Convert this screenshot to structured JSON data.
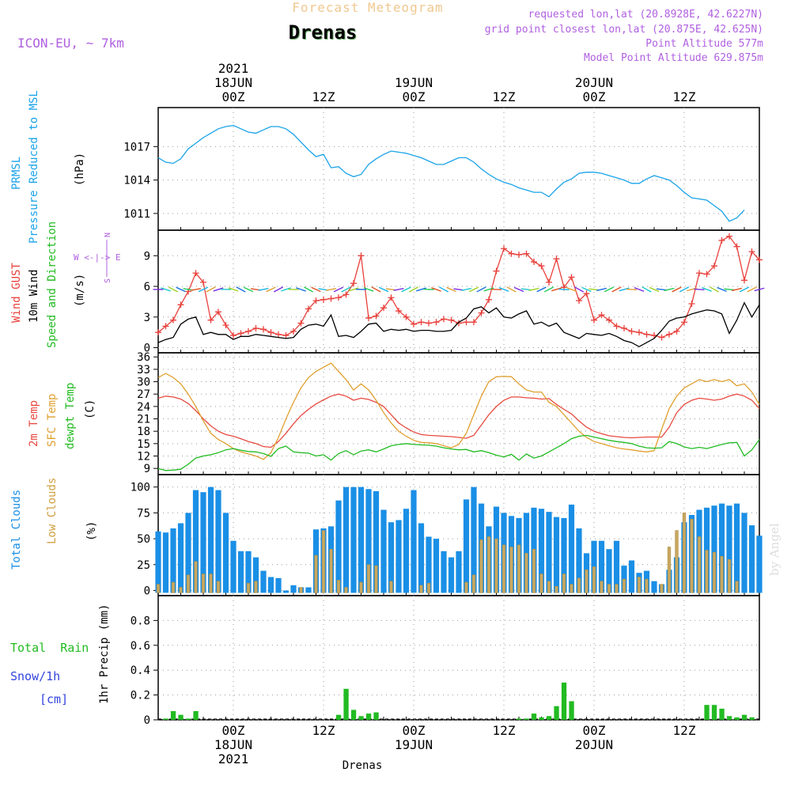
{
  "header": {
    "title_top": "Forecast Meteogram",
    "station": "Drenas",
    "model": "ICON-EU, ~ 7km",
    "req_point": "requested lon,lat (20.8928E, 42.6227N)",
    "grid_point": "grid point closest lon,lat (20.875E, 42.625N)",
    "altitude": "Point Altitude 577m",
    "model_altitude": "Model Point Altitude 629.875m",
    "footer_station": "Drenas",
    "watermark": "by Angel"
  },
  "time_axis": {
    "top_labels": [
      {
        "hour": 0,
        "lines": [
          "2021",
          "18JUN",
          "00Z"
        ]
      },
      {
        "hour": 12,
        "lines": [
          "12Z"
        ]
      },
      {
        "hour": 24,
        "lines": [
          "19JUN",
          "00Z"
        ]
      },
      {
        "hour": 36,
        "lines": [
          "12Z"
        ]
      },
      {
        "hour": 48,
        "lines": [
          "20JUN",
          "00Z"
        ]
      },
      {
        "hour": 60,
        "lines": [
          "12Z"
        ]
      }
    ],
    "bottom_labels": [
      {
        "hour": 0,
        "lines": [
          "00Z",
          "18JUN",
          "2021"
        ]
      },
      {
        "hour": 12,
        "lines": [
          "12Z"
        ]
      },
      {
        "hour": 24,
        "lines": [
          "00Z",
          "19JUN"
        ]
      },
      {
        "hour": 36,
        "lines": [
          "12Z"
        ]
      },
      {
        "hour": 48,
        "lines": [
          "00Z",
          "20JUN"
        ]
      },
      {
        "hour": 60,
        "lines": [
          "12Z"
        ]
      }
    ]
  },
  "panel_labels": {
    "pressure": {
      "l1": "PRMSL",
      "l2": "Pressure Reduced to MSL",
      "unit": "(hPa)"
    },
    "wind": {
      "gust": "Wind GUST",
      "wind10": "10m Wind",
      "dir": "Speed and Direction",
      "unit": "(m/s)",
      "compass_n": "N",
      "compass_s": "S",
      "compass_we": "W <-|-> E"
    },
    "temp": {
      "t2m": "2m Temp",
      "sfc": "SFC Temp",
      "dew": "dewpt Temp",
      "unit": "(C)"
    },
    "clouds": {
      "total": "Total Clouds",
      "low": "Low Clouds",
      "unit": "(%)"
    },
    "precip": {
      "rain": "Total  Rain",
      "snow": "Snow/1h",
      "snow_unit": "[cm]",
      "axis": "1hr Precip (mm)"
    }
  },
  "colors": {
    "pressure": "#1aa3e8",
    "gust": "#e8413c",
    "wind": "#000000",
    "t2m": "#e84a40",
    "sfc": "#e0a030",
    "dew": "#22bb22",
    "total_clouds": "#1a8fe6",
    "low_clouds": "#c8a860",
    "rain": "#22bb22",
    "snow": "#3344dd",
    "model_label": "#b060e0",
    "title_top": "#f0c890"
  },
  "chart_data": [
    {
      "type": "line",
      "name": "pressure",
      "x_start_hour": -10,
      "x_step_hours": 1,
      "ylim": [
        1009.5,
        1020.5
      ],
      "yticks": [
        1011,
        1014,
        1017
      ],
      "series": [
        {
          "name": "PRMSL",
          "values": [
            1016.0,
            1015.6,
            1015.5,
            1015.9,
            1016.8,
            1017.3,
            1017.8,
            1018.2,
            1018.6,
            1018.8,
            1018.9,
            1018.6,
            1018.3,
            1018.2,
            1018.5,
            1018.8,
            1018.8,
            1018.6,
            1018.1,
            1017.4,
            1016.7,
            1016.1,
            1016.3,
            1015.1,
            1015.2,
            1014.6,
            1014.3,
            1014.5,
            1015.4,
            1015.9,
            1016.3,
            1016.6,
            1016.5,
            1016.4,
            1016.2,
            1016.0,
            1015.7,
            1015.4,
            1015.4,
            1015.7,
            1016.0,
            1016.0,
            1015.6,
            1015.0,
            1014.5,
            1014.1,
            1013.8,
            1013.6,
            1013.3,
            1013.1,
            1012.9,
            1012.9,
            1012.5,
            1013.2,
            1013.8,
            1014.1,
            1014.6,
            1014.7,
            1014.7,
            1014.6,
            1014.4,
            1014.2,
            1014.0,
            1013.7,
            1013.7,
            1014.1,
            1014.4,
            1014.2,
            1014.0,
            1013.5,
            1012.9,
            1012.4,
            1012.3,
            1012.2,
            1011.7,
            1011.2,
            1010.3,
            1010.6,
            1011.3
          ]
        }
      ]
    },
    {
      "type": "line",
      "name": "wind",
      "x_start_hour": -10,
      "x_step_hours": 1,
      "ylim": [
        -0.5,
        11.5
      ],
      "yticks": [
        0,
        3,
        6,
        9
      ],
      "series": [
        {
          "name": "Wind GUST",
          "values": [
            1.5,
            2.1,
            2.7,
            4.2,
            5.5,
            7.3,
            6.4,
            2.7,
            3.5,
            2.2,
            1.2,
            1.4,
            1.6,
            1.9,
            1.8,
            1.5,
            1.3,
            1.2,
            1.6,
            2.4,
            3.8,
            4.6,
            4.7,
            4.8,
            4.9,
            5.2,
            6.3,
            9.0,
            2.9,
            3.1,
            3.9,
            4.9,
            3.6,
            3.0,
            2.3,
            2.5,
            2.4,
            2.5,
            2.8,
            2.7,
            2.4,
            2.5,
            2.5,
            3.4,
            4.7,
            7.5,
            9.7,
            9.2,
            9.1,
            9.2,
            8.4,
            8.0,
            6.4,
            8.7,
            5.9,
            6.9,
            4.6,
            5.3,
            2.7,
            3.2,
            2.7,
            2.1,
            1.9,
            1.6,
            1.5,
            1.3,
            1.2,
            1.0,
            1.3,
            1.6,
            2.5,
            4.3,
            7.3,
            7.2,
            8.0,
            10.5,
            10.9,
            9.9,
            6.6,
            9.4,
            8.6
          ]
        },
        {
          "name": "10m Wind",
          "values": [
            0.5,
            0.8,
            1.0,
            2.3,
            2.8,
            3.0,
            1.3,
            1.5,
            1.3,
            1.3,
            0.8,
            1.1,
            1.1,
            1.3,
            1.2,
            1.1,
            1.0,
            0.9,
            1.0,
            1.8,
            2.2,
            2.3,
            2.1,
            3.2,
            1.1,
            1.2,
            1.0,
            1.6,
            2.3,
            2.4,
            1.6,
            1.8,
            1.7,
            1.8,
            1.6,
            1.7,
            1.7,
            1.6,
            1.6,
            1.7,
            2.5,
            2.9,
            3.8,
            4.0,
            3.4,
            3.9,
            3.0,
            2.9,
            3.3,
            3.6,
            2.3,
            2.5,
            2.1,
            2.4,
            1.5,
            1.2,
            0.9,
            1.4,
            1.3,
            1.2,
            1.4,
            1.1,
            0.7,
            0.5,
            0.1,
            0.5,
            0.9,
            1.7,
            2.6,
            2.9,
            3.0,
            3.3,
            3.5,
            3.7,
            3.6,
            3.3,
            1.4,
            2.7,
            4.4,
            3.0,
            4.2
          ]
        }
      ]
    },
    {
      "type": "line",
      "name": "temperature",
      "x_start_hour": -10,
      "x_step_hours": 1,
      "ylim": [
        7.5,
        37
      ],
      "yticks": [
        9,
        12,
        15,
        18,
        21,
        24,
        27,
        30,
        33,
        36
      ],
      "series": [
        {
          "name": "2m Temp",
          "values": [
            26.0,
            26.5,
            26.3,
            25.8,
            24.7,
            23.0,
            21.0,
            19.3,
            18.0,
            17.2,
            16.8,
            16.2,
            15.5,
            15.0,
            14.3,
            14.1,
            15.5,
            17.5,
            19.8,
            21.8,
            23.3,
            24.6,
            25.6,
            26.5,
            27.0,
            26.5,
            25.5,
            26.0,
            25.7,
            25.0,
            24.0,
            22.0,
            20.0,
            18.8,
            17.8,
            17.2,
            17.0,
            16.9,
            16.8,
            16.7,
            16.5,
            16.3,
            17.0,
            19.5,
            22.0,
            24.0,
            25.5,
            26.3,
            26.3,
            26.1,
            26.0,
            25.8,
            25.9,
            24.5,
            23.3,
            22.2,
            20.5,
            19.0,
            18.0,
            17.4,
            16.9,
            16.7,
            16.5,
            16.4,
            16.5,
            16.6,
            16.6,
            16.6,
            19.0,
            22.5,
            24.5,
            25.5,
            26.0,
            25.8,
            25.5,
            25.8,
            26.5,
            27.0,
            26.5,
            25.5,
            23.5
          ]
        },
        {
          "name": "SFC Temp",
          "values": [
            31.0,
            32.0,
            31.0,
            29.5,
            27.0,
            24.0,
            20.5,
            17.5,
            16.0,
            15.0,
            13.8,
            13.0,
            12.5,
            12.0,
            11.2,
            12.8,
            16.5,
            21.0,
            25.0,
            28.5,
            31.0,
            32.5,
            33.5,
            34.5,
            32.5,
            30.5,
            28.0,
            29.5,
            28.0,
            25.5,
            22.5,
            20.0,
            18.0,
            16.8,
            15.8,
            15.3,
            15.2,
            15.0,
            14.5,
            14.0,
            14.8,
            17.5,
            22.0,
            26.5,
            30.0,
            31.2,
            31.3,
            31.2,
            29.5,
            28.0,
            27.5,
            27.5,
            25.0,
            24.0,
            22.0,
            20.0,
            18.0,
            16.5,
            15.5,
            15.0,
            14.5,
            14.0,
            13.7,
            13.5,
            13.2,
            13.0,
            13.3,
            18.5,
            23.5,
            26.5,
            28.5,
            29.5,
            30.5,
            30.0,
            30.5,
            30.0,
            30.5,
            29.0,
            29.5,
            27.5,
            24.5
          ]
        },
        {
          "name": "dewpt Temp",
          "values": [
            9.0,
            8.5,
            8.6,
            8.8,
            10.0,
            11.5,
            12.0,
            12.3,
            12.8,
            13.5,
            13.8,
            13.4,
            13.1,
            13.0,
            12.6,
            11.9,
            13.8,
            14.4,
            13.0,
            12.8,
            12.7,
            12.0,
            12.3,
            11.0,
            12.6,
            13.3,
            12.3,
            13.2,
            13.5,
            13.0,
            13.7,
            14.5,
            14.8,
            15.0,
            14.8,
            14.7,
            14.6,
            14.4,
            14.0,
            13.7,
            13.5,
            13.6,
            13.0,
            13.3,
            12.8,
            12.2,
            11.8,
            12.4,
            11.0,
            12.5,
            11.5,
            12.0,
            13.0,
            14.0,
            15.0,
            16.2,
            16.8,
            17.0,
            16.6,
            16.2,
            15.8,
            15.5,
            15.3,
            15.0,
            14.4,
            14.0,
            13.9,
            14.0,
            15.5,
            15.0,
            14.2,
            13.8,
            14.1,
            13.8,
            14.3,
            14.8,
            15.2,
            15.3,
            12.0,
            13.5,
            16.0
          ]
        }
      ]
    },
    {
      "type": "bar",
      "name": "clouds",
      "x_start_hour": -10,
      "x_step_hours": 1,
      "ylim": [
        -5,
        112
      ],
      "yticks": [
        0,
        25,
        50,
        75,
        100
      ],
      "series": [
        {
          "name": "Total Clouds",
          "values": [
            57,
            56,
            60,
            65,
            75,
            97,
            95,
            100,
            97,
            75,
            48,
            38,
            38,
            32,
            19,
            13,
            12,
            0,
            5,
            3,
            3,
            59,
            60,
            62,
            87,
            100,
            100,
            100,
            98,
            96,
            78,
            66,
            68,
            79,
            97,
            65,
            52,
            50,
            38,
            32,
            38,
            88,
            100,
            84,
            62,
            81,
            75,
            72,
            70,
            75,
            80,
            79,
            76,
            71,
            70,
            83,
            60,
            36,
            48,
            48,
            40,
            48,
            24,
            29,
            17,
            19,
            9,
            6,
            20,
            32,
            66,
            73,
            78,
            80,
            82,
            84,
            82,
            84,
            75,
            63,
            53
          ]
        },
        {
          "name": "Low Clouds",
          "values": [
            6,
            0,
            8,
            3,
            15,
            28,
            16,
            16,
            9,
            0,
            0,
            0,
            7,
            9,
            0,
            0,
            0,
            0,
            0,
            3,
            0,
            34,
            58,
            40,
            10,
            3,
            0,
            8,
            25,
            24,
            0,
            9,
            0,
            0,
            0,
            5,
            7,
            0,
            0,
            0,
            0,
            8,
            15,
            49,
            52,
            50,
            44,
            42,
            44,
            36,
            40,
            16,
            9,
            4,
            16,
            6,
            12,
            20,
            23,
            9,
            6,
            6,
            11,
            0,
            13,
            11,
            0,
            6,
            42,
            58,
            75,
            69,
            52,
            39,
            37,
            33,
            30,
            9,
            0,
            0,
            0
          ]
        }
      ]
    },
    {
      "type": "bar",
      "name": "precipitation",
      "x_start_hour": -10,
      "x_step_hours": 1,
      "ylim": [
        0,
        1.0
      ],
      "yticks": [
        0,
        0.2,
        0.4,
        0.6,
        0.8
      ],
      "series": [
        {
          "name": "Total Rain",
          "values": [
            0,
            0.01,
            0.07,
            0.04,
            0.01,
            0.07,
            0,
            0,
            0,
            0,
            0,
            0,
            0,
            0,
            0,
            0,
            0,
            0,
            0,
            0,
            0,
            0,
            0,
            0,
            0.04,
            0.25,
            0.08,
            0.03,
            0.05,
            0.06,
            0,
            0,
            0,
            0,
            0,
            0,
            0,
            0,
            0,
            0,
            0,
            0,
            0,
            0,
            0,
            0,
            0,
            0,
            0.01,
            0.01,
            0.05,
            0.02,
            0.03,
            0.11,
            0.3,
            0.15,
            0,
            0,
            0,
            0,
            0,
            0,
            0,
            0,
            0,
            0,
            0,
            0,
            0,
            0,
            0,
            0,
            0,
            0.12,
            0.12,
            0.09,
            0.03,
            0.02,
            0.04,
            0.02,
            0
          ]
        },
        {
          "name": "Snow/1h",
          "values": []
        }
      ]
    }
  ]
}
